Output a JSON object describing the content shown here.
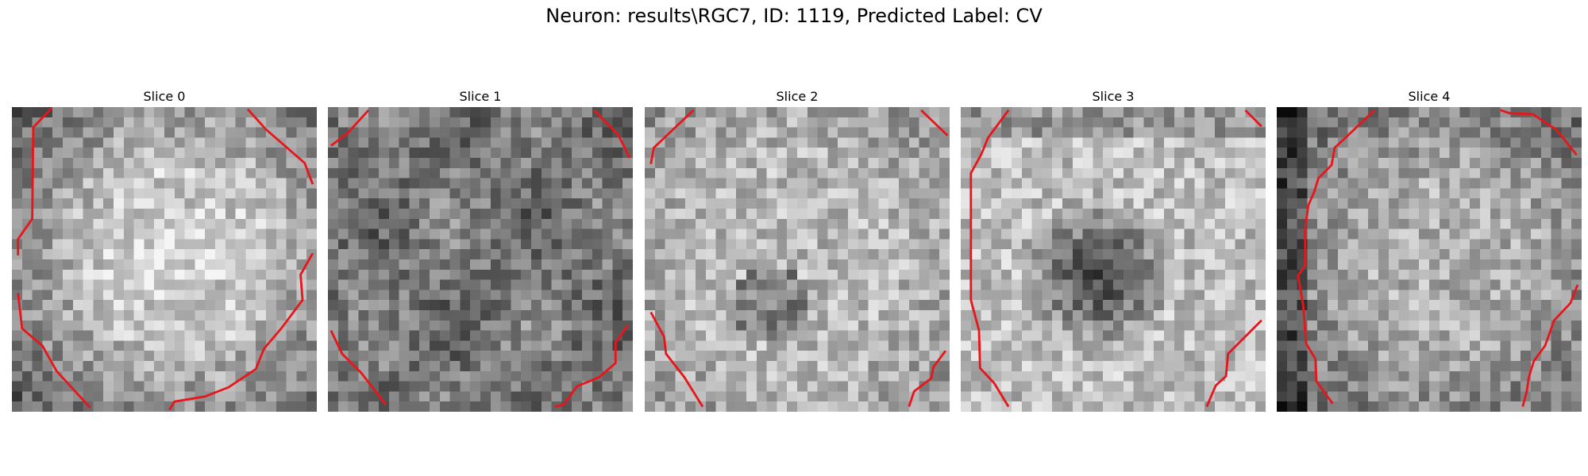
{
  "figure": {
    "title": "Neuron: results\\RGC7, ID: 1119, Predicted Label: CV"
  },
  "slices": [
    {
      "title": "Slice 0"
    },
    {
      "title": "Slice 1"
    },
    {
      "title": "Slice 2"
    },
    {
      "title": "Slice 3"
    },
    {
      "title": "Slice 4"
    }
  ],
  "colors": {
    "contour": "#e8151b",
    "background": "#ffffff"
  }
}
